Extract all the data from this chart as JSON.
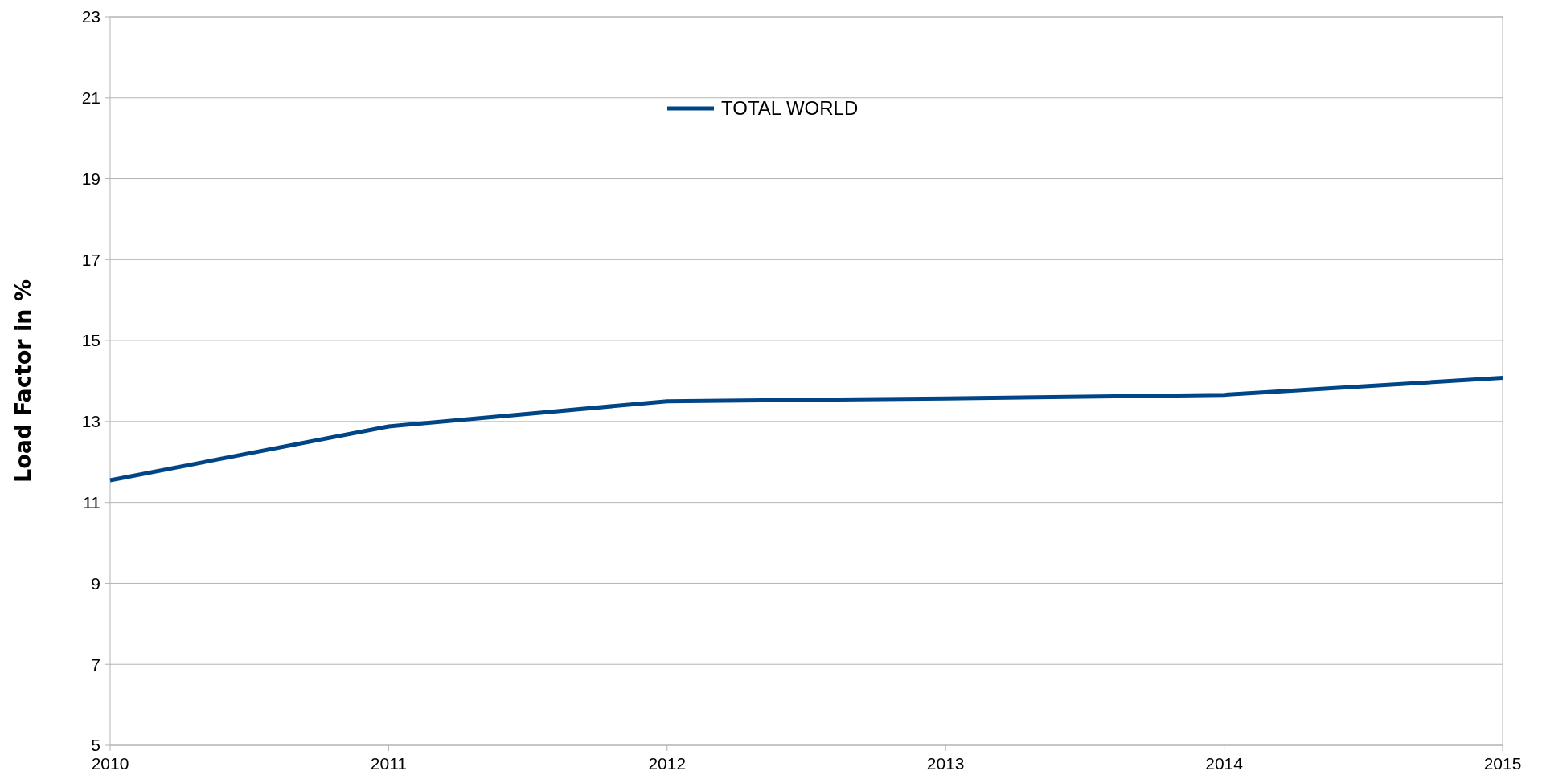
{
  "chart_data": {
    "type": "line",
    "ylabel": "Load Factor in %",
    "x": [
      2010,
      2011,
      2012,
      2013,
      2014,
      2015
    ],
    "series": [
      {
        "name": "TOTAL WORLD",
        "color": "#004586",
        "values": [
          11.55,
          12.88,
          13.5,
          13.57,
          13.66,
          14.08
        ]
      }
    ],
    "xlim": [
      2010,
      2015
    ],
    "xticks": [
      2010,
      2011,
      2012,
      2013,
      2014,
      2015
    ],
    "ylim": [
      5,
      23
    ],
    "yticks": [
      5,
      7,
      9,
      11,
      13,
      15,
      17,
      19,
      21,
      23
    ],
    "grid": "y",
    "legend": "top",
    "marker": "none",
    "line_style": "solid"
  }
}
